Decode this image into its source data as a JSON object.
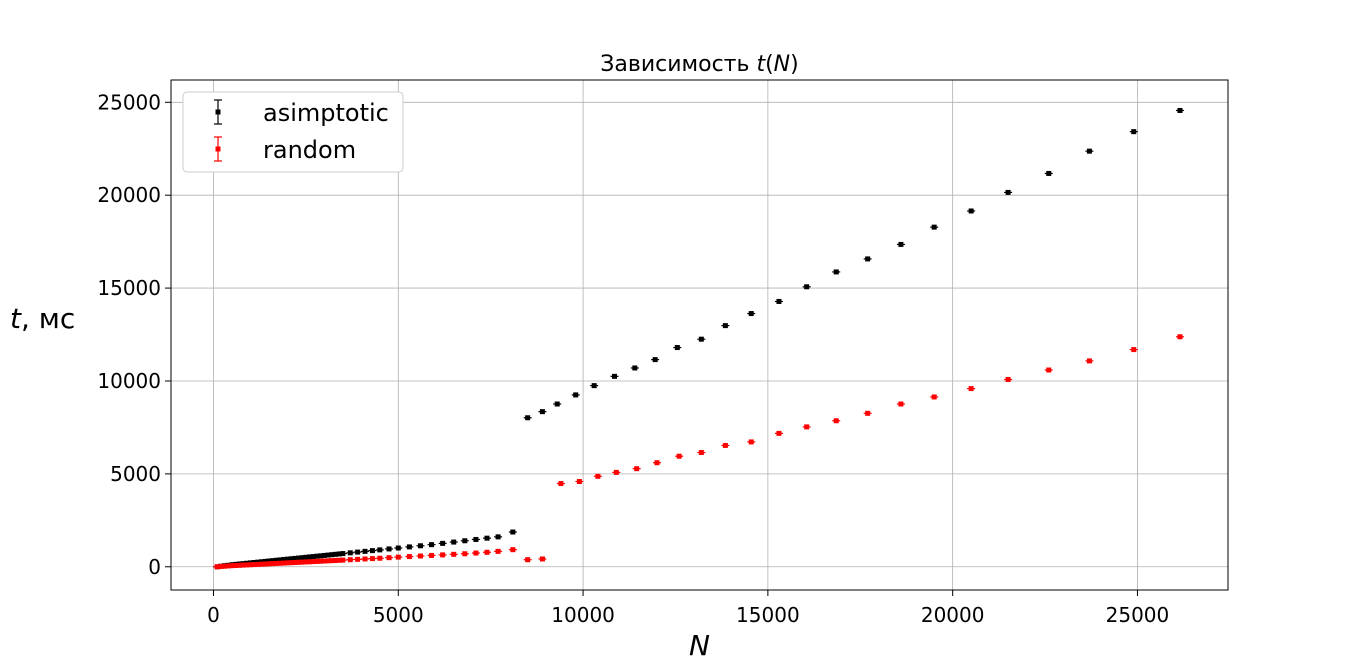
{
  "chart_data": {
    "type": "scatter",
    "title": "Зависимость t(N)",
    "title_parts": {
      "prefix": "Зависимость ",
      "var_t": "t",
      "open": "(",
      "var_n": "N",
      "close": ")"
    },
    "xlabel": "N",
    "ylabel": "t, мс",
    "ylabel_parts": {
      "var": "t",
      "unit": ", мс"
    },
    "xlim": [
      -1150,
      27450
    ],
    "ylim": [
      -1250,
      26200
    ],
    "xticks": [
      0,
      5000,
      10000,
      15000,
      20000,
      25000
    ],
    "xtick_labels": [
      "0",
      "5000",
      "10000",
      "15000",
      "20000",
      "25000"
    ],
    "yticks": [
      0,
      5000,
      10000,
      15000,
      20000,
      25000
    ],
    "ytick_labels": [
      "0",
      "5000",
      "10000",
      "15000",
      "20000",
      "25000"
    ],
    "grid": true,
    "legend_position": "upper left",
    "marker": "square with error bars",
    "series": [
      {
        "name": "asimptotic",
        "color": "#000000",
        "x": [
          100,
          200,
          300,
          400,
          500,
          600,
          700,
          800,
          900,
          1000,
          1100,
          1200,
          1300,
          1400,
          1500,
          1600,
          1700,
          1800,
          1900,
          2000,
          2100,
          2200,
          2300,
          2400,
          2500,
          2600,
          2700,
          2800,
          2900,
          3000,
          3100,
          3200,
          3300,
          3400,
          3500,
          3700,
          3900,
          4100,
          4300,
          4500,
          4750,
          5000,
          5300,
          5600,
          5900,
          6200,
          6500,
          6800,
          7100,
          7400,
          7700,
          8100,
          8500,
          8900,
          9300,
          9800,
          10300,
          10850,
          11400,
          11950,
          12550,
          13200,
          13850,
          14550,
          15300,
          16050,
          16850,
          17700,
          18600,
          19500,
          20500,
          21500,
          22600,
          23700,
          24900,
          26150
        ],
        "y": [
          0,
          30,
          60,
          80,
          110,
          130,
          150,
          170,
          190,
          210,
          230,
          250,
          270,
          290,
          310,
          330,
          350,
          370,
          390,
          410,
          430,
          450,
          470,
          490,
          510,
          530,
          550,
          570,
          590,
          610,
          630,
          650,
          670,
          690,
          710,
          750,
          790,
          830,
          870,
          910,
          960,
          1010,
          1070,
          1130,
          1190,
          1260,
          1330,
          1400,
          1470,
          1540,
          1610,
          1870,
          8020,
          8350,
          8760,
          9250,
          9750,
          10250,
          10700,
          11150,
          11800,
          12250,
          12980,
          13630,
          14280,
          15070,
          15870,
          16570,
          17350,
          18280,
          19150,
          20150,
          21170,
          22370,
          23420,
          24560
        ]
      },
      {
        "name": "random",
        "color": "#ff0000",
        "x": [
          100,
          200,
          300,
          400,
          500,
          600,
          700,
          800,
          900,
          1000,
          1100,
          1200,
          1300,
          1400,
          1500,
          1600,
          1700,
          1800,
          1900,
          2000,
          2100,
          2200,
          2300,
          2400,
          2500,
          2600,
          2700,
          2800,
          2900,
          3000,
          3100,
          3200,
          3300,
          3400,
          3500,
          3700,
          3900,
          4100,
          4300,
          4500,
          4750,
          5000,
          5300,
          5600,
          5900,
          6200,
          6500,
          6800,
          7100,
          7400,
          7700,
          8100,
          8500,
          8900,
          9400,
          9900,
          10400,
          10900,
          11450,
          12000,
          12600,
          13200,
          13850,
          14550,
          15300,
          16050,
          16850,
          17700,
          18600,
          19500,
          20500,
          21500,
          22600,
          23700,
          24900,
          26150
        ],
        "y": [
          0,
          15,
          30,
          45,
          60,
          70,
          80,
          90,
          100,
          110,
          120,
          130,
          140,
          150,
          160,
          170,
          180,
          190,
          200,
          210,
          220,
          230,
          240,
          250,
          260,
          270,
          280,
          290,
          300,
          310,
          320,
          330,
          340,
          350,
          360,
          380,
          400,
          420,
          440,
          460,
          490,
          520,
          550,
          580,
          610,
          640,
          670,
          700,
          740,
          780,
          830,
          920,
          380,
          420,
          4480,
          4590,
          4870,
          5080,
          5280,
          5600,
          5950,
          6150,
          6530,
          6720,
          7180,
          7530,
          7860,
          8260,
          8760,
          9140,
          9590,
          10080,
          10590,
          11080,
          11690,
          12380
        ]
      }
    ]
  }
}
